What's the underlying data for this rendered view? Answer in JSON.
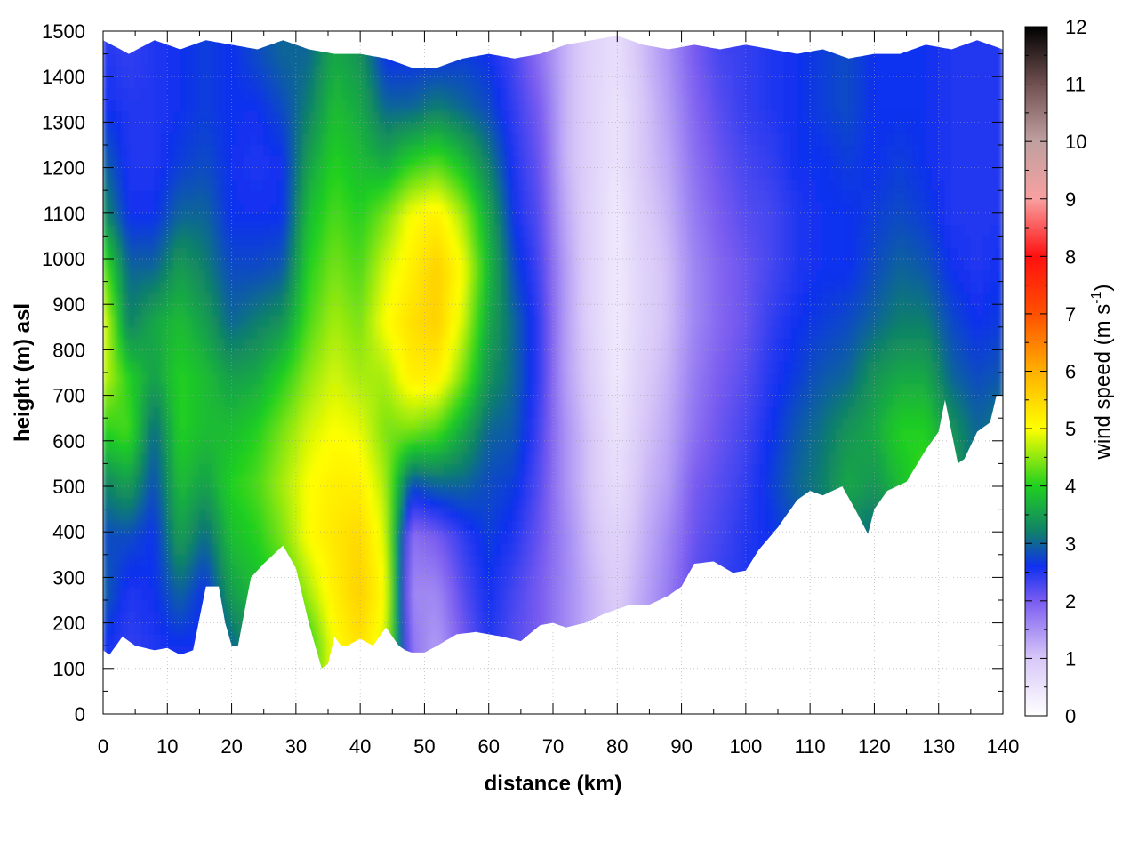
{
  "chart_data": {
    "type": "heatmap",
    "title": "",
    "xlabel": "distance (km)",
    "ylabel": "height (m) asl",
    "xlim": [
      0,
      140
    ],
    "ylim": [
      0,
      1500
    ],
    "x_ticks": [
      "0",
      "10",
      "20",
      "30",
      "40",
      "50",
      "60",
      "70",
      "80",
      "90",
      "100",
      "110",
      "120",
      "130",
      "140"
    ],
    "y_ticks": [
      "0",
      "100",
      "200",
      "300",
      "400",
      "500",
      "600",
      "700",
      "800",
      "900",
      "1000",
      "1100",
      "1200",
      "1300",
      "1400",
      "1500"
    ],
    "grid": true,
    "colorbar": {
      "label_main": "wind speed (m s",
      "label_sup": "-1",
      "label_close": ")",
      "range": [
        0,
        12
      ],
      "ticks": [
        "0",
        "1",
        "2",
        "3",
        "4",
        "5",
        "6",
        "7",
        "8",
        "9",
        "10",
        "11",
        "12"
      ],
      "stops": [
        {
          "v": 0,
          "c": "#ffffff"
        },
        {
          "v": 1,
          "c": "#d8c8f8"
        },
        {
          "v": 2,
          "c": "#7a5cf0"
        },
        {
          "v": 2.6,
          "c": "#1030f0"
        },
        {
          "v": 3.2,
          "c": "#10806a"
        },
        {
          "v": 4,
          "c": "#20d020"
        },
        {
          "v": 5,
          "c": "#ffff00"
        },
        {
          "v": 6,
          "c": "#ffb000"
        },
        {
          "v": 7,
          "c": "#ff5000"
        },
        {
          "v": 8,
          "c": "#ff1010"
        },
        {
          "v": 9,
          "c": "#f8a0a0"
        },
        {
          "v": 10,
          "c": "#c0a0a0"
        },
        {
          "v": 11,
          "c": "#705050"
        },
        {
          "v": 12,
          "c": "#000000"
        }
      ]
    },
    "terrain": {
      "x": [
        0,
        1,
        3,
        5,
        8,
        10,
        12,
        14,
        16,
        18,
        19,
        20,
        21,
        23,
        25,
        28,
        30,
        32,
        33,
        34,
        35,
        36,
        37,
        38,
        40,
        42,
        44,
        46,
        47,
        48,
        50,
        52,
        55,
        58,
        62,
        65,
        68,
        70,
        72,
        75,
        78,
        80,
        82,
        85,
        88,
        90,
        92,
        95,
        98,
        100,
        102,
        105,
        108,
        110,
        112,
        115,
        117,
        119,
        120,
        122,
        125,
        128,
        130,
        131,
        133,
        134,
        136,
        138,
        139
      ],
      "y": [
        140,
        130,
        170,
        150,
        140,
        145,
        130,
        140,
        280,
        280,
        200,
        150,
        150,
        300,
        330,
        370,
        320,
        200,
        150,
        100,
        110,
        170,
        150,
        150,
        165,
        150,
        190,
        150,
        140,
        135,
        135,
        150,
        175,
        180,
        170,
        160,
        195,
        200,
        190,
        200,
        220,
        230,
        240,
        240,
        260,
        280,
        330,
        335,
        310,
        315,
        360,
        410,
        470,
        490,
        480,
        500,
        450,
        395,
        450,
        490,
        510,
        580,
        620,
        690,
        550,
        560,
        620,
        640,
        700
      ]
    },
    "profiles": [
      {
        "x": 0,
        "top": 1480,
        "values": [
          2.6,
          3.0,
          2.8,
          3.2,
          4.0,
          4.8,
          5.0,
          4.4,
          3.4,
          3.0,
          2.6,
          2.5
        ]
      },
      {
        "x": 4,
        "top": 1450,
        "values": [
          2.4,
          2.5,
          2.8,
          3.5,
          4.2,
          4.0,
          3.2,
          3.0,
          2.6,
          2.5,
          2.5,
          2.4
        ]
      },
      {
        "x": 8,
        "top": 1480,
        "values": [
          2.5,
          2.6,
          2.6,
          2.8,
          3.0,
          3.5,
          3.6,
          3.0,
          2.6,
          2.5,
          2.5,
          2.5
        ]
      },
      {
        "x": 12,
        "top": 1460,
        "values": [
          2.6,
          3.0,
          3.5,
          3.8,
          4.0,
          4.0,
          3.8,
          3.5,
          3.0,
          2.7,
          2.6,
          2.6
        ]
      },
      {
        "x": 16,
        "top": 1480,
        "values": [
          2.5,
          2.6,
          3.0,
          3.5,
          3.8,
          3.8,
          3.5,
          3.2,
          3.0,
          2.8,
          2.7,
          2.7
        ]
      },
      {
        "x": 20,
        "top": 1470,
        "values": [
          3.0,
          3.5,
          3.8,
          4.0,
          3.8,
          3.5,
          3.0,
          2.8,
          2.6,
          2.6,
          2.6,
          2.6
        ]
      },
      {
        "x": 24,
        "top": 1460,
        "values": [
          3.4,
          3.8,
          4.0,
          4.2,
          4.0,
          3.6,
          3.2,
          2.8,
          2.6,
          2.5,
          2.6,
          2.8
        ]
      },
      {
        "x": 28,
        "top": 1480,
        "values": [
          3.5,
          4.0,
          4.4,
          4.6,
          4.4,
          4.0,
          3.4,
          2.9,
          2.6,
          2.6,
          2.8,
          3.0
        ]
      },
      {
        "x": 32,
        "top": 1460,
        "values": [
          4.0,
          4.6,
          5.0,
          5.0,
          4.8,
          4.5,
          4.2,
          4.0,
          3.8,
          3.5,
          3.2,
          3.0
        ]
      },
      {
        "x": 36,
        "top": 1450,
        "values": [
          5.0,
          5.2,
          5.3,
          5.2,
          5.0,
          4.8,
          4.6,
          4.4,
          4.2,
          4.0,
          3.8,
          3.6
        ]
      },
      {
        "x": 40,
        "top": 1450,
        "values": [
          5.4,
          5.6,
          5.5,
          5.2,
          4.9,
          4.6,
          4.4,
          4.2,
          4.0,
          3.8,
          3.6,
          3.4
        ]
      },
      {
        "x": 44,
        "top": 1440,
        "values": [
          4.8,
          5.0,
          4.8,
          4.6,
          4.4,
          4.6,
          5.0,
          4.8,
          4.4,
          3.6,
          3.0,
          2.6
        ]
      },
      {
        "x": 48,
        "top": 1420,
        "values": [
          1.8,
          1.6,
          1.8,
          2.8,
          4.4,
          5.2,
          5.4,
          5.2,
          5.0,
          4.0,
          3.0,
          2.6
        ]
      },
      {
        "x": 52,
        "top": 1420,
        "values": [
          1.4,
          1.6,
          2.0,
          3.0,
          4.2,
          5.2,
          5.6,
          5.6,
          5.2,
          4.2,
          3.2,
          2.6
        ]
      },
      {
        "x": 56,
        "top": 1440,
        "values": [
          2.0,
          2.2,
          2.4,
          3.0,
          3.6,
          4.4,
          4.8,
          5.0,
          4.6,
          3.8,
          3.0,
          2.7
        ]
      },
      {
        "x": 60,
        "top": 1450,
        "values": [
          2.5,
          2.6,
          2.7,
          2.8,
          3.0,
          3.4,
          3.6,
          3.8,
          3.6,
          3.2,
          2.8,
          2.6
        ]
      },
      {
        "x": 64,
        "top": 1440,
        "values": [
          2.2,
          2.3,
          2.5,
          2.7,
          2.9,
          3.0,
          3.0,
          2.8,
          2.6,
          2.5,
          2.4,
          2.3
        ]
      },
      {
        "x": 68,
        "top": 1450,
        "values": [
          2.0,
          2.0,
          2.1,
          2.2,
          2.3,
          2.4,
          2.4,
          2.3,
          2.2,
          2.1,
          2.0,
          1.8
        ]
      },
      {
        "x": 72,
        "top": 1470,
        "values": [
          1.6,
          1.6,
          1.6,
          1.5,
          1.5,
          1.4,
          1.4,
          1.4,
          1.3,
          1.2,
          1.2,
          1.2
        ]
      },
      {
        "x": 76,
        "top": 1480,
        "values": [
          1.2,
          1.2,
          1.1,
          1.0,
          1.0,
          0.9,
          0.8,
          0.8,
          0.8,
          0.8,
          0.8,
          0.8
        ]
      },
      {
        "x": 80,
        "top": 1490,
        "values": [
          1.0,
          0.9,
          0.8,
          0.6,
          0.5,
          0.4,
          0.4,
          0.4,
          0.4,
          0.5,
          0.5,
          0.6
        ]
      },
      {
        "x": 84,
        "top": 1470,
        "values": [
          1.4,
          1.3,
          1.2,
          1.1,
          1.0,
          0.9,
          0.8,
          0.8,
          0.9,
          1.0,
          1.0,
          1.1
        ]
      },
      {
        "x": 88,
        "top": 1460,
        "values": [
          1.8,
          1.7,
          1.6,
          1.4,
          1.3,
          1.2,
          1.1,
          1.1,
          1.2,
          1.3,
          1.4,
          1.5
        ]
      },
      {
        "x": 92,
        "top": 1470,
        "values": [
          2.2,
          2.2,
          2.1,
          2.0,
          1.8,
          1.7,
          1.6,
          1.6,
          1.7,
          1.8,
          1.9,
          2.0
        ]
      },
      {
        "x": 96,
        "top": 1460,
        "values": [
          2.4,
          2.4,
          2.3,
          2.2,
          2.1,
          2.0,
          1.9,
          1.9,
          2.0,
          2.1,
          2.2,
          2.3
        ]
      },
      {
        "x": 100,
        "top": 1470,
        "values": [
          2.5,
          2.5,
          2.5,
          2.4,
          2.3,
          2.2,
          2.1,
          2.1,
          2.2,
          2.3,
          2.4,
          2.4
        ]
      },
      {
        "x": 104,
        "top": 1460,
        "values": [
          2.5,
          2.6,
          2.6,
          2.7,
          2.6,
          2.5,
          2.4,
          2.3,
          2.3,
          2.4,
          2.5,
          2.5
        ]
      },
      {
        "x": 108,
        "top": 1450,
        "values": [
          2.6,
          2.7,
          2.8,
          3.0,
          2.9,
          2.7,
          2.6,
          2.5,
          2.5,
          2.6,
          2.6,
          2.6
        ]
      },
      {
        "x": 112,
        "top": 1460,
        "values": [
          2.7,
          2.8,
          3.0,
          3.2,
          3.1,
          2.9,
          2.7,
          2.6,
          2.6,
          2.6,
          2.7,
          2.7
        ]
      },
      {
        "x": 116,
        "top": 1440,
        "values": [
          2.6,
          2.8,
          3.2,
          3.6,
          3.4,
          3.0,
          2.8,
          2.6,
          2.6,
          2.7,
          2.8,
          2.8
        ]
      },
      {
        "x": 120,
        "top": 1450,
        "values": [
          2.5,
          2.7,
          3.0,
          3.4,
          3.6,
          3.4,
          3.0,
          2.8,
          2.7,
          2.6,
          2.6,
          2.6
        ]
      },
      {
        "x": 124,
        "top": 1450,
        "values": [
          2.6,
          2.8,
          3.2,
          3.8,
          4.0,
          3.6,
          3.2,
          3.0,
          2.8,
          2.7,
          2.6,
          2.6
        ]
      },
      {
        "x": 128,
        "top": 1470,
        "values": [
          2.8,
          3.2,
          3.8,
          4.2,
          4.0,
          3.6,
          3.2,
          2.9,
          2.7,
          2.6,
          2.6,
          2.6
        ]
      },
      {
        "x": 132,
        "top": 1460,
        "values": [
          2.6,
          2.8,
          3.2,
          3.6,
          3.4,
          3.0,
          2.8,
          2.6,
          2.5,
          2.5,
          2.5,
          2.5
        ]
      },
      {
        "x": 136,
        "top": 1480,
        "values": [
          2.5,
          2.6,
          2.8,
          3.0,
          3.0,
          2.8,
          2.6,
          2.5,
          2.5,
          2.5,
          2.5,
          2.5
        ]
      },
      {
        "x": 140,
        "top": 1460,
        "values": [
          2.6,
          2.7,
          3.0,
          3.4,
          3.2,
          2.9,
          2.7,
          2.6,
          2.5,
          2.5,
          2.5,
          2.5
        ]
      }
    ]
  }
}
